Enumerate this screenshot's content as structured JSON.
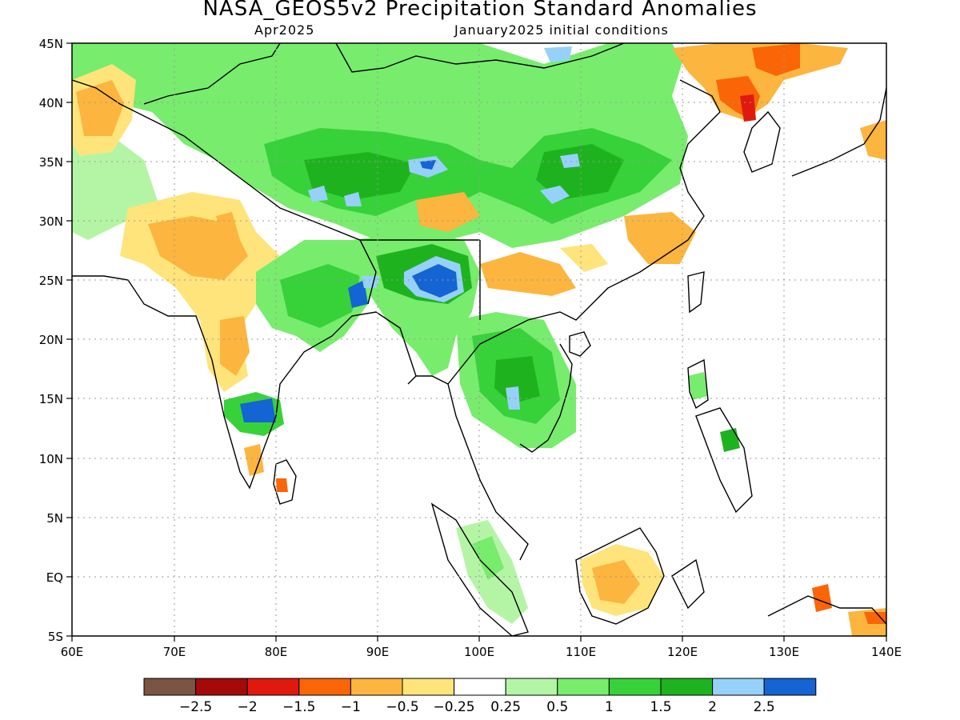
{
  "title": "NASA_GEOS5v2 Precipitation Standard Anomalies",
  "subtitle_left": "Apr2025",
  "subtitle_right": "January2025 initial conditions",
  "map": {
    "lon_range": [
      60,
      140
    ],
    "lat_range": [
      -5,
      45
    ],
    "lon_ticks": [
      "60E",
      "70E",
      "80E",
      "90E",
      "100E",
      "110E",
      "120E",
      "130E",
      "140E"
    ],
    "lat_ticks": [
      "45N",
      "40N",
      "35N",
      "30N",
      "25N",
      "20N",
      "15N",
      "10N",
      "5N",
      "EQ",
      "5S"
    ]
  },
  "colorbar": {
    "colors": [
      "#7b5444",
      "#a50a0a",
      "#e0190f",
      "#fa6507",
      "#fcb53e",
      "#fee47b",
      "#ffffff",
      "#b4f5a5",
      "#78ec6d",
      "#37d23a",
      "#1eb31e",
      "#96d1fa",
      "#1464d3"
    ],
    "labels": [
      "−2.5",
      "−2",
      "−1.5",
      "−1",
      "−0.5",
      "−0.25",
      "0.25",
      "0.5",
      "1",
      "1.5",
      "2",
      "2.5"
    ]
  }
}
